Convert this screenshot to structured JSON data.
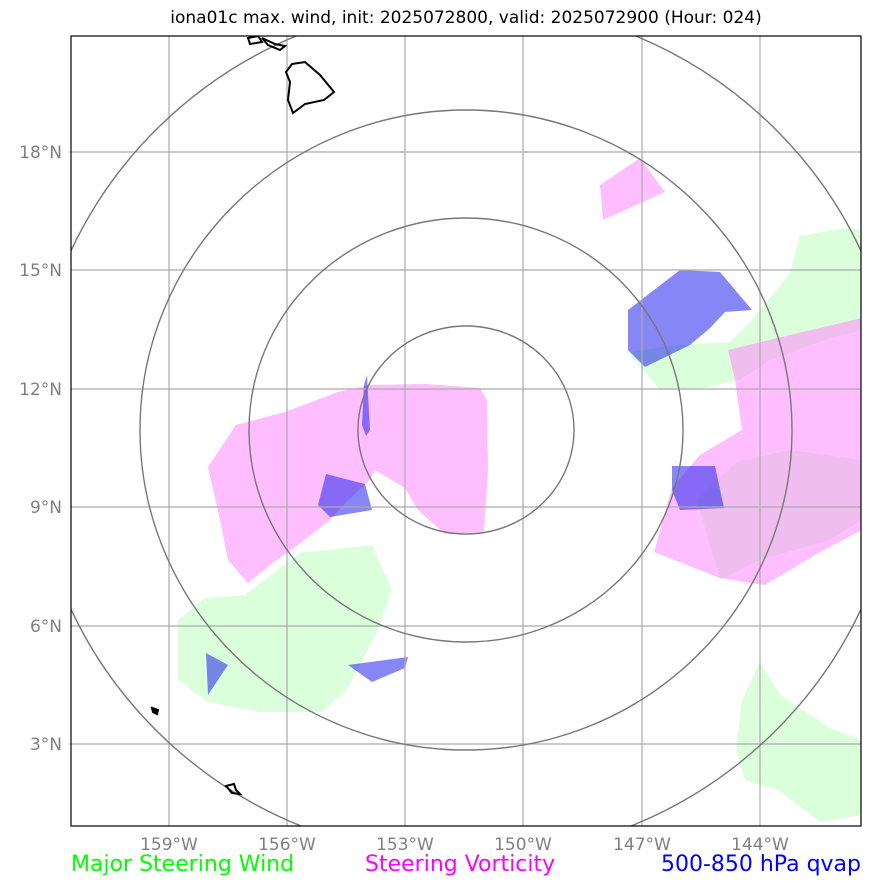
{
  "title": "iona01c max. wind, init: 2025072800, valid: 2025072900 (Hour: 024)",
  "axes": {
    "lon_ticks": [
      "159°W",
      "156°W",
      "153°W",
      "150°W",
      "147°W",
      "144°W"
    ],
    "lat_ticks": [
      "18°N",
      "15°N",
      "12°N",
      "9°N",
      "6°N",
      "3°N"
    ]
  },
  "legend": {
    "wind": {
      "label": "Major Steering Wind",
      "color": "#00ff00"
    },
    "vorticity": {
      "label": "Steering Vorticity",
      "color": "#ff00ff"
    },
    "qvap": {
      "label": "500-850 hPa qvap",
      "color": "#0000ff"
    }
  },
  "layers": {
    "wind_fill": "#ccffcc",
    "vorticity_fill": "#ff88ff",
    "qvap_fill": "#2222ee",
    "range_rings_color": "#777777",
    "coastline_color": "#000000",
    "gridline_color": "#aaaaaa"
  }
}
